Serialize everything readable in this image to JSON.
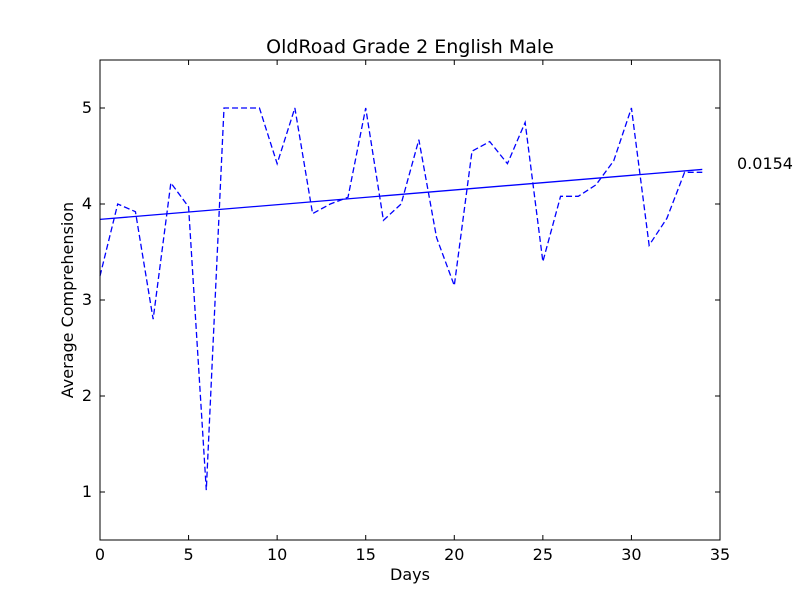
{
  "chart_data": {
    "type": "line",
    "title": "OldRoad Grade 2 English Male",
    "xlabel": "Days",
    "ylabel": "Average Comprehension",
    "xlim": [
      0,
      35
    ],
    "ylim": [
      0.5,
      5.5
    ],
    "xticks": [
      0,
      5,
      10,
      15,
      20,
      25,
      30,
      35
    ],
    "yticks": [
      1,
      2,
      3,
      4,
      5
    ],
    "grid": false,
    "series": [
      {
        "style": "dashed",
        "color": "#0000ff",
        "x": [
          0,
          1,
          2,
          3,
          4,
          5,
          6,
          7,
          8,
          9,
          10,
          11,
          12,
          13,
          14,
          15,
          16,
          17,
          18,
          19,
          20,
          21,
          22,
          23,
          24,
          25,
          26,
          27,
          28,
          29,
          30,
          31,
          32,
          33,
          34
        ],
        "y": [
          3.25,
          4.0,
          3.92,
          2.8,
          4.22,
          3.97,
          1.02,
          5.0,
          5.0,
          5.0,
          4.42,
          5.0,
          3.9,
          4.0,
          4.07,
          5.0,
          3.83,
          4.0,
          4.67,
          3.65,
          3.15,
          4.55,
          4.65,
          4.42,
          4.85,
          3.4,
          4.08,
          4.08,
          4.2,
          4.45,
          5.0,
          3.57,
          3.85,
          4.33,
          4.33
        ]
      },
      {
        "style": "solid",
        "color": "#0000ff",
        "x": [
          0,
          34
        ],
        "y": [
          3.84,
          4.36
        ]
      }
    ],
    "annotation": "0.0154"
  }
}
